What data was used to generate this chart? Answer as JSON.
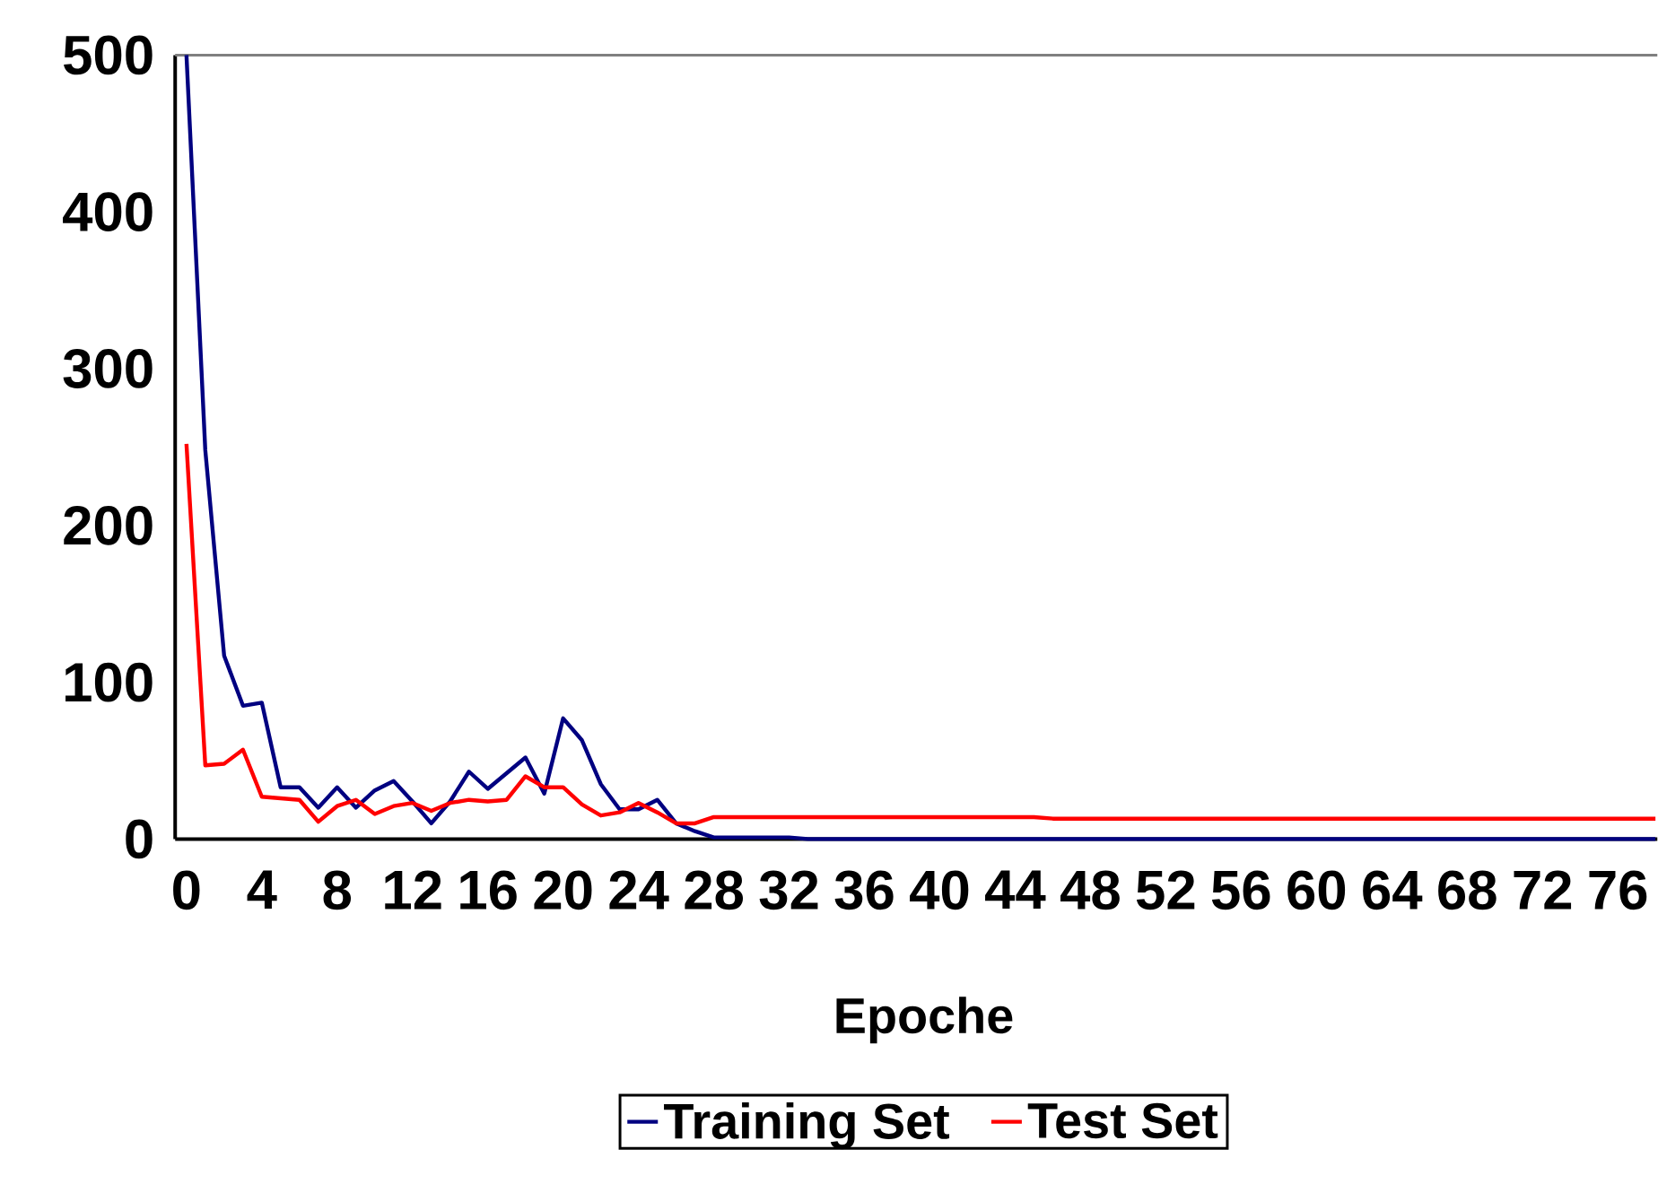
{
  "chart_data": {
    "type": "line",
    "xlabel": "Epoche",
    "x": [
      0,
      1,
      2,
      3,
      4,
      5,
      6,
      7,
      8,
      9,
      10,
      11,
      12,
      13,
      14,
      15,
      16,
      17,
      18,
      19,
      20,
      21,
      22,
      23,
      24,
      25,
      26,
      27,
      28,
      29,
      30,
      31,
      32,
      33,
      34,
      35,
      36,
      37,
      38,
      39,
      40,
      41,
      42,
      43,
      44,
      45,
      46,
      47,
      48,
      49,
      50,
      51,
      52,
      53,
      54,
      55,
      56,
      57,
      58,
      59,
      60,
      61,
      62,
      63,
      64,
      65,
      66,
      67,
      68,
      69,
      70,
      71,
      72,
      73,
      74,
      75,
      76,
      77,
      78
    ],
    "series": [
      {
        "name": "Training Set",
        "color": "#000080",
        "values": [
          500,
          248,
          117,
          85,
          87,
          33,
          33,
          20,
          33,
          20,
          31,
          37,
          24,
          10,
          24,
          43,
          32,
          42,
          52,
          29,
          77,
          63,
          35,
          19,
          19,
          25,
          10,
          5,
          1,
          1,
          1,
          1,
          1,
          0,
          0,
          0,
          0,
          0,
          0,
          0,
          0,
          0,
          0,
          0,
          0,
          0,
          0,
          0,
          0,
          0,
          0,
          0,
          0,
          0,
          0,
          0,
          0,
          0,
          0,
          0,
          0,
          0,
          0,
          0,
          0,
          0,
          0,
          0,
          0,
          0,
          0,
          0,
          0,
          0,
          0,
          0,
          0,
          0,
          0
        ]
      },
      {
        "name": "Test Set",
        "color": "#ff0000",
        "values": [
          252,
          47,
          48,
          57,
          27,
          26,
          25,
          11,
          21,
          25,
          16,
          21,
          23,
          18,
          23,
          25,
          24,
          25,
          40,
          33,
          33,
          22,
          15,
          17,
          23,
          17,
          10,
          10,
          14,
          14,
          14,
          14,
          14,
          14,
          14,
          14,
          14,
          14,
          14,
          14,
          14,
          14,
          14,
          14,
          14,
          14,
          13,
          13,
          13,
          13,
          13,
          13,
          13,
          13,
          13,
          13,
          13,
          13,
          13,
          13,
          13,
          13,
          13,
          13,
          13,
          13,
          13,
          13,
          13,
          13,
          13,
          13,
          13,
          13,
          13,
          13,
          13,
          13,
          13
        ]
      }
    ],
    "xlim": [
      -0.6,
      78.1
    ],
    "ylim": [
      0,
      500
    ],
    "xticks": [
      0,
      4,
      8,
      12,
      16,
      20,
      24,
      28,
      32,
      36,
      40,
      44,
      48,
      52,
      56,
      60,
      64,
      68,
      72,
      76
    ],
    "yticks": [
      0,
      100,
      200,
      300,
      400,
      500
    ],
    "grid": false,
    "legend": "bottom",
    "marker": "none",
    "line_style": "solid"
  }
}
